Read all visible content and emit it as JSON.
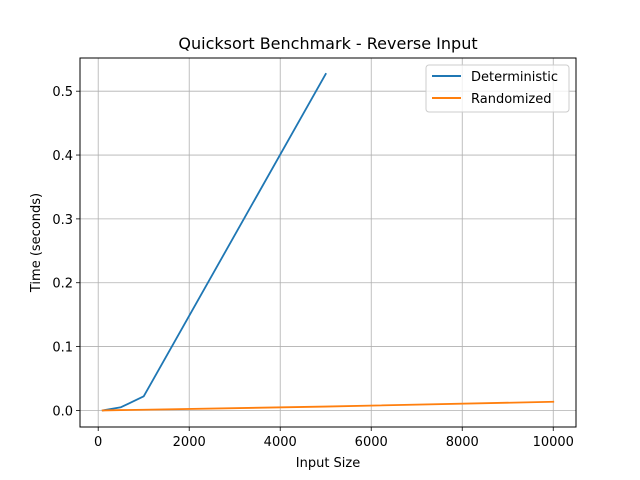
{
  "chart_data": {
    "type": "line",
    "title": "Quicksort Benchmark - Reverse Input",
    "xlabel": "Input Size",
    "ylabel": "Time (seconds)",
    "xlim": [
      -400,
      10500
    ],
    "ylim": [
      -0.026,
      0.552
    ],
    "xticks": [
      0,
      2000,
      4000,
      6000,
      8000,
      10000
    ],
    "yticks": [
      0.0,
      0.1,
      0.2,
      0.3,
      0.4,
      0.5
    ],
    "xtick_labels": [
      "0",
      "2000",
      "4000",
      "6000",
      "8000",
      "10000"
    ],
    "ytick_labels": [
      "0.0",
      "0.1",
      "0.2",
      "0.3",
      "0.4",
      "0.5"
    ],
    "grid": true,
    "legend_position": "top-right",
    "series": [
      {
        "name": "Deterministic",
        "color": "#1f77b4",
        "x": [
          100,
          500,
          1000,
          5000
        ],
        "y": [
          0.0,
          0.005,
          0.022,
          0.527
        ]
      },
      {
        "name": "Randomized",
        "color": "#ff7f0e",
        "x": [
          100,
          500,
          1000,
          5000,
          10000
        ],
        "y": [
          0.0,
          0.0005,
          0.001,
          0.006,
          0.0135
        ]
      }
    ]
  }
}
